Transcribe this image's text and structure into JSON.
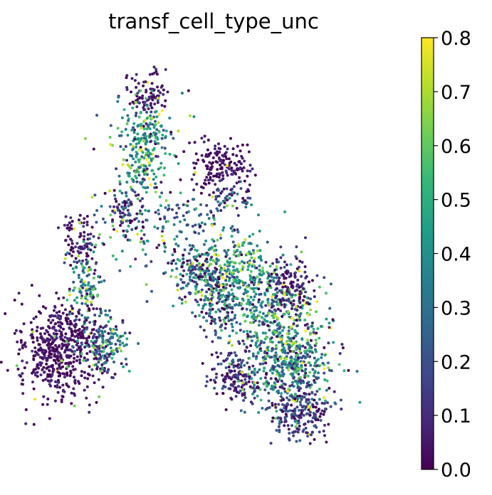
{
  "chart_data": {
    "type": "scatter",
    "title": "transf_cell_type_unc",
    "xlabel": "",
    "ylabel": "",
    "grid": false,
    "axes_visible": false,
    "colormap": "viridis",
    "colorbar": {
      "min": 0.0,
      "max": 0.8,
      "ticks": [
        0.0,
        0.1,
        0.2,
        0.3,
        0.4,
        0.5,
        0.6,
        0.7,
        0.8
      ],
      "tick_labels": [
        "0.0",
        "0.1",
        "0.2",
        "0.3",
        "0.4",
        "0.5",
        "0.6",
        "0.7",
        "0.8"
      ]
    },
    "xlim": [
      0,
      100
    ],
    "ylim": [
      0,
      100
    ],
    "clusters": [
      {
        "cx": 33,
        "cy": 89,
        "sx": 2.8,
        "sy": 2.8,
        "n": 90,
        "mean": 0.06,
        "spread": 0.05
      },
      {
        "cx": 33,
        "cy": 80,
        "sx": 4.0,
        "sy": 4.5,
        "n": 180,
        "mean": 0.38,
        "spread": 0.18
      },
      {
        "cx": 31,
        "cy": 71,
        "sx": 2.5,
        "sy": 4.0,
        "n": 90,
        "mean": 0.42,
        "spread": 0.2
      },
      {
        "cx": 52,
        "cy": 72,
        "sx": 4.2,
        "sy": 3.2,
        "n": 170,
        "mean": 0.04,
        "spread": 0.04
      },
      {
        "cx": 54,
        "cy": 64,
        "sx": 3.0,
        "sy": 1.5,
        "n": 50,
        "mean": 0.2,
        "spread": 0.15
      },
      {
        "cx": 27,
        "cy": 61,
        "sx": 2.5,
        "sy": 2.5,
        "n": 60,
        "mean": 0.12,
        "spread": 0.1
      },
      {
        "cx": 31,
        "cy": 58,
        "sx": 6.0,
        "sy": 6.0,
        "n": 110,
        "mean": 0.3,
        "spread": 0.2
      },
      {
        "cx": 45,
        "cy": 59,
        "sx": 6.0,
        "sy": 3.0,
        "n": 70,
        "mean": 0.25,
        "spread": 0.15
      },
      {
        "cx": 15,
        "cy": 53,
        "sx": 2.5,
        "sy": 3.5,
        "n": 90,
        "mean": 0.06,
        "spread": 0.05
      },
      {
        "cx": 17,
        "cy": 44,
        "sx": 2.0,
        "sy": 4.5,
        "n": 110,
        "mean": 0.38,
        "spread": 0.18
      },
      {
        "cx": 10,
        "cy": 27,
        "sx": 5.5,
        "sy": 6.0,
        "n": 550,
        "mean": 0.04,
        "spread": 0.04
      },
      {
        "cx": 20,
        "cy": 29,
        "sx": 3.0,
        "sy": 4.0,
        "n": 110,
        "mean": 0.25,
        "spread": 0.15
      },
      {
        "cx": 24,
        "cy": 28,
        "sx": 3.0,
        "sy": 2.5,
        "n": 50,
        "mean": 0.3,
        "spread": 0.15
      },
      {
        "cx": 46,
        "cy": 46,
        "sx": 3.5,
        "sy": 3.5,
        "n": 170,
        "mean": 0.25,
        "spread": 0.18
      },
      {
        "cx": 52,
        "cy": 40,
        "sx": 4.0,
        "sy": 5.0,
        "n": 190,
        "mean": 0.2,
        "spread": 0.18
      },
      {
        "cx": 58,
        "cy": 46,
        "sx": 5.0,
        "sy": 5.0,
        "n": 230,
        "mean": 0.45,
        "spread": 0.18
      },
      {
        "cx": 66,
        "cy": 37,
        "sx": 6.0,
        "sy": 5.0,
        "n": 260,
        "mean": 0.4,
        "spread": 0.2
      },
      {
        "cx": 71,
        "cy": 43,
        "sx": 3.0,
        "sy": 3.5,
        "n": 130,
        "mean": 0.07,
        "spread": 0.06
      },
      {
        "cx": 56,
        "cy": 20,
        "sx": 3.0,
        "sy": 3.0,
        "n": 150,
        "mean": 0.1,
        "spread": 0.08
      },
      {
        "cx": 70,
        "cy": 25,
        "sx": 6.5,
        "sy": 6.0,
        "n": 500,
        "mean": 0.33,
        "spread": 0.2
      },
      {
        "cx": 73,
        "cy": 12,
        "sx": 4.0,
        "sy": 3.5,
        "n": 230,
        "mean": 0.12,
        "spread": 0.1
      }
    ]
  }
}
